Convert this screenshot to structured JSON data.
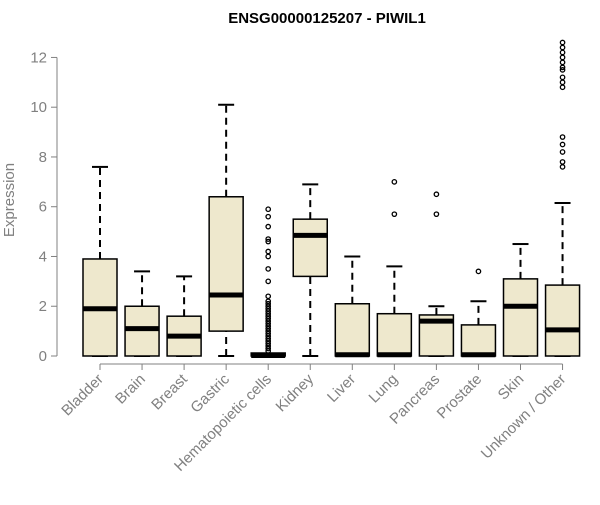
{
  "chart_data": {
    "type": "boxplot",
    "title": "ENSG00000125207 - PIWIL1",
    "xlabel": "",
    "ylabel": "Expression",
    "ylim": [
      0,
      12.5
    ],
    "yticks": [
      0,
      2,
      4,
      6,
      8,
      10,
      12
    ],
    "grid": false,
    "legend": "none",
    "colors": {
      "box_fill": "#EEE8CD",
      "stroke": "#000000",
      "tick_text": "#808080",
      "title": "#000000"
    },
    "categories": [
      "Bladder",
      "Brain",
      "Breast",
      "Gastric",
      "Hematopoietic cells",
      "Kidney",
      "Liver",
      "Lung",
      "Pancreas",
      "Prostate",
      "Skin",
      "Unknown / Other"
    ],
    "boxes": [
      {
        "category": "Bladder",
        "min": 0,
        "q1": 0,
        "median": 1.9,
        "q3": 3.9,
        "max": 7.6,
        "outliers": []
      },
      {
        "category": "Brain",
        "min": 0,
        "q1": 0,
        "median": 1.1,
        "q3": 2.0,
        "max": 3.4,
        "outliers": []
      },
      {
        "category": "Breast",
        "min": 0,
        "q1": 0,
        "median": 0.8,
        "q3": 1.6,
        "max": 3.2,
        "outliers": []
      },
      {
        "category": "Gastric",
        "min": 0,
        "q1": 1.0,
        "median": 2.45,
        "q3": 6.4,
        "max": 10.1,
        "outliers": []
      },
      {
        "category": "Hematopoietic cells",
        "min": 0,
        "q1": 0,
        "median": 0.02,
        "q3": 0.05,
        "max": 0.1,
        "outliers": [
          0.2,
          0.3,
          0.4,
          0.5,
          0.6,
          0.7,
          0.8,
          0.9,
          1.0,
          1.1,
          1.2,
          1.3,
          1.4,
          1.5,
          1.6,
          1.7,
          1.8,
          1.9,
          2.0,
          2.1,
          2.2,
          2.4,
          3.0,
          3.5,
          4.0,
          4.2,
          4.6,
          4.7,
          5.2,
          5.6,
          5.9
        ]
      },
      {
        "category": "Kidney",
        "min": 0,
        "q1": 3.2,
        "median": 4.85,
        "q3": 5.5,
        "max": 6.9,
        "outliers": []
      },
      {
        "category": "Liver",
        "min": 0,
        "q1": 0,
        "median": 0.05,
        "q3": 2.1,
        "max": 4.0,
        "outliers": []
      },
      {
        "category": "Lung",
        "min": 0,
        "q1": 0,
        "median": 0.05,
        "q3": 1.7,
        "max": 3.6,
        "outliers": [
          5.7,
          7.0
        ]
      },
      {
        "category": "Pancreas",
        "min": 0,
        "q1": 0,
        "median": 1.4,
        "q3": 1.65,
        "max": 2.0,
        "outliers": [
          5.7,
          6.5
        ]
      },
      {
        "category": "Prostate",
        "min": 0,
        "q1": 0,
        "median": 0.05,
        "q3": 1.25,
        "max": 2.2,
        "outliers": [
          3.4
        ]
      },
      {
        "category": "Skin",
        "min": 0,
        "q1": 0,
        "median": 2.0,
        "q3": 3.1,
        "max": 4.5,
        "outliers": []
      },
      {
        "category": "Unknown / Other",
        "min": 0,
        "q1": 0,
        "median": 1.05,
        "q3": 2.85,
        "max": 6.15,
        "outliers": [
          7.6,
          7.8,
          8.2,
          8.5,
          8.8,
          10.8,
          11.0,
          11.2,
          11.5,
          11.6,
          11.8,
          12.0,
          12.2,
          12.4,
          12.6
        ]
      }
    ]
  }
}
